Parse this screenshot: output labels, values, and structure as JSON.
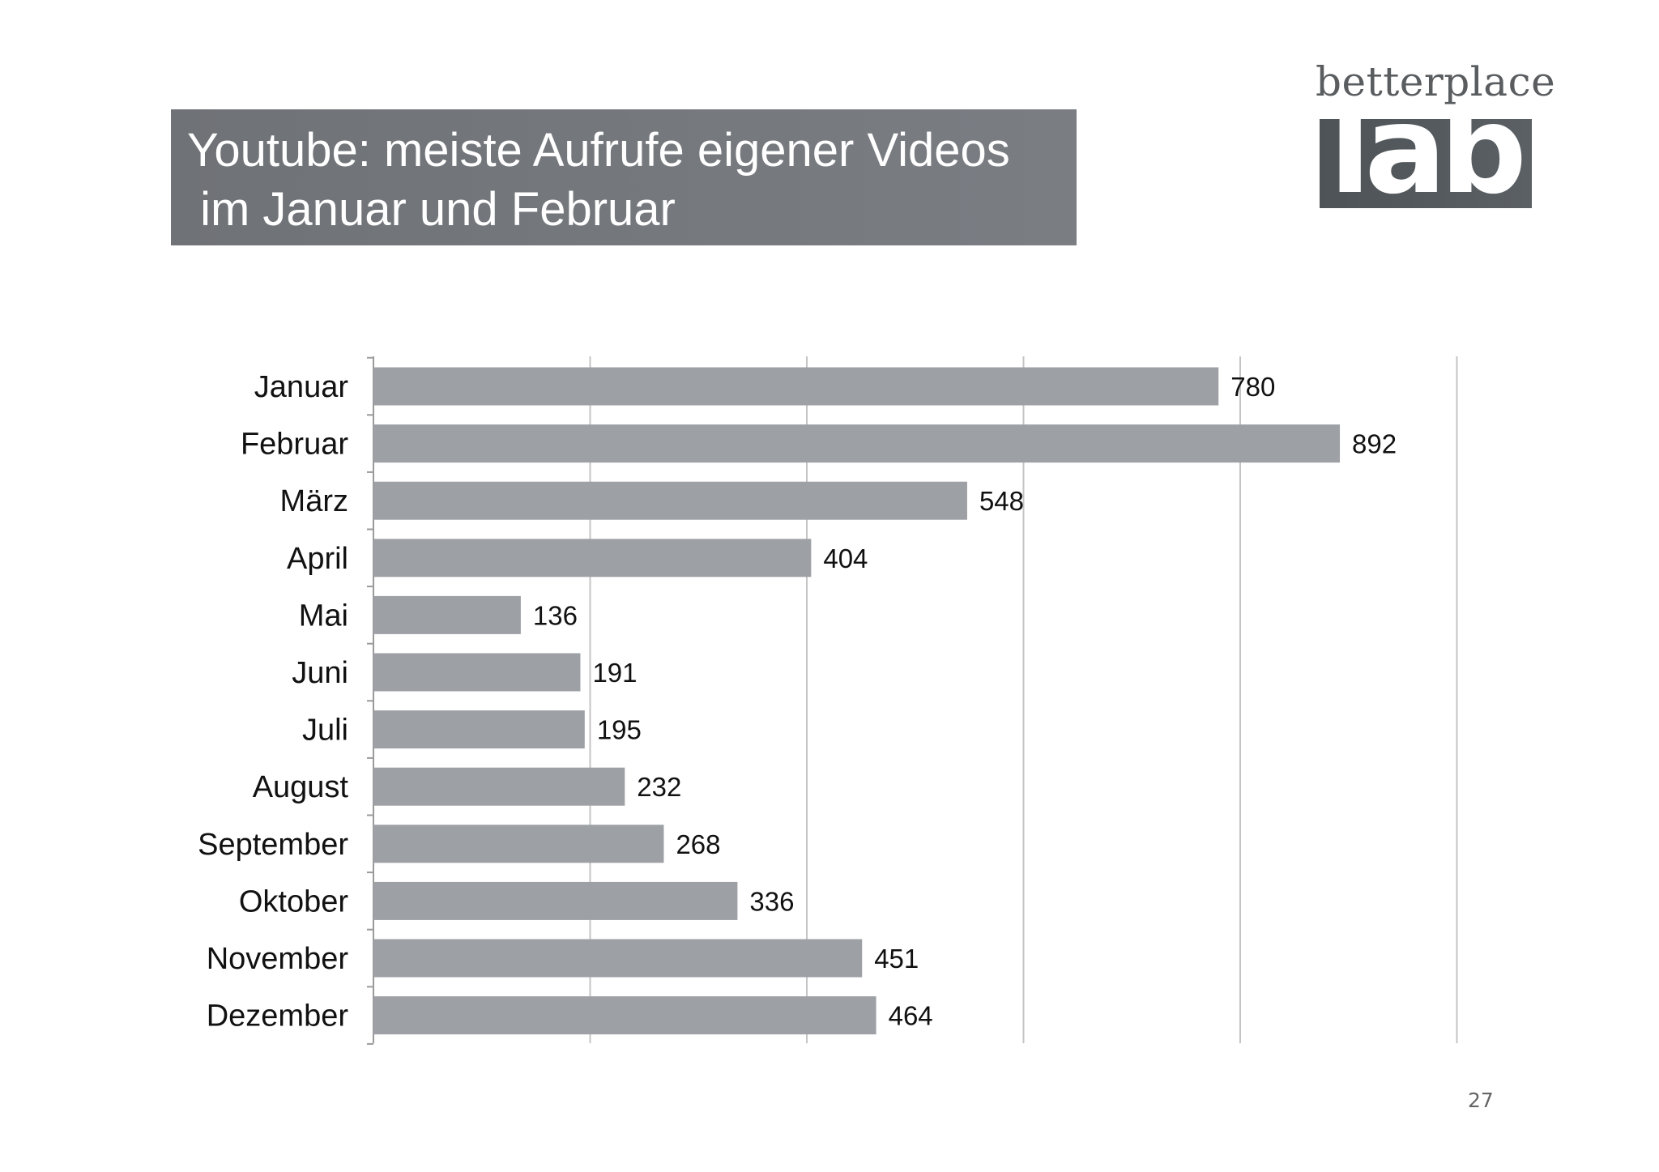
{
  "title": {
    "line1": "Youtube: meiste Aufrufe eigener Videos",
    "line2": " im Januar und Februar"
  },
  "logo": {
    "word": "betterplace",
    "block": "lab"
  },
  "page_number": "27",
  "colors": {
    "bar": "#9da0a5",
    "gridline": "#c4c4c4",
    "title_bg": "#75787c",
    "text": "#111111"
  },
  "chart_data": {
    "type": "bar",
    "orientation": "horizontal",
    "categories": [
      "Januar",
      "Februar",
      "März",
      "April",
      "Mai",
      "Juni",
      "Juli",
      "August",
      "September",
      "Oktober",
      "November",
      "Dezember"
    ],
    "values": [
      780,
      892,
      548,
      404,
      136,
      191,
      195,
      232,
      268,
      336,
      451,
      464
    ],
    "data_labels": [
      "780",
      "892",
      "548",
      "404",
      "136",
      "191",
      "195",
      "232",
      "268",
      "336",
      "451",
      "464"
    ],
    "xlim": [
      0,
      1000
    ],
    "x_gridlines": [
      200,
      400,
      600,
      800,
      1000
    ],
    "grid": true,
    "legend": "none"
  }
}
